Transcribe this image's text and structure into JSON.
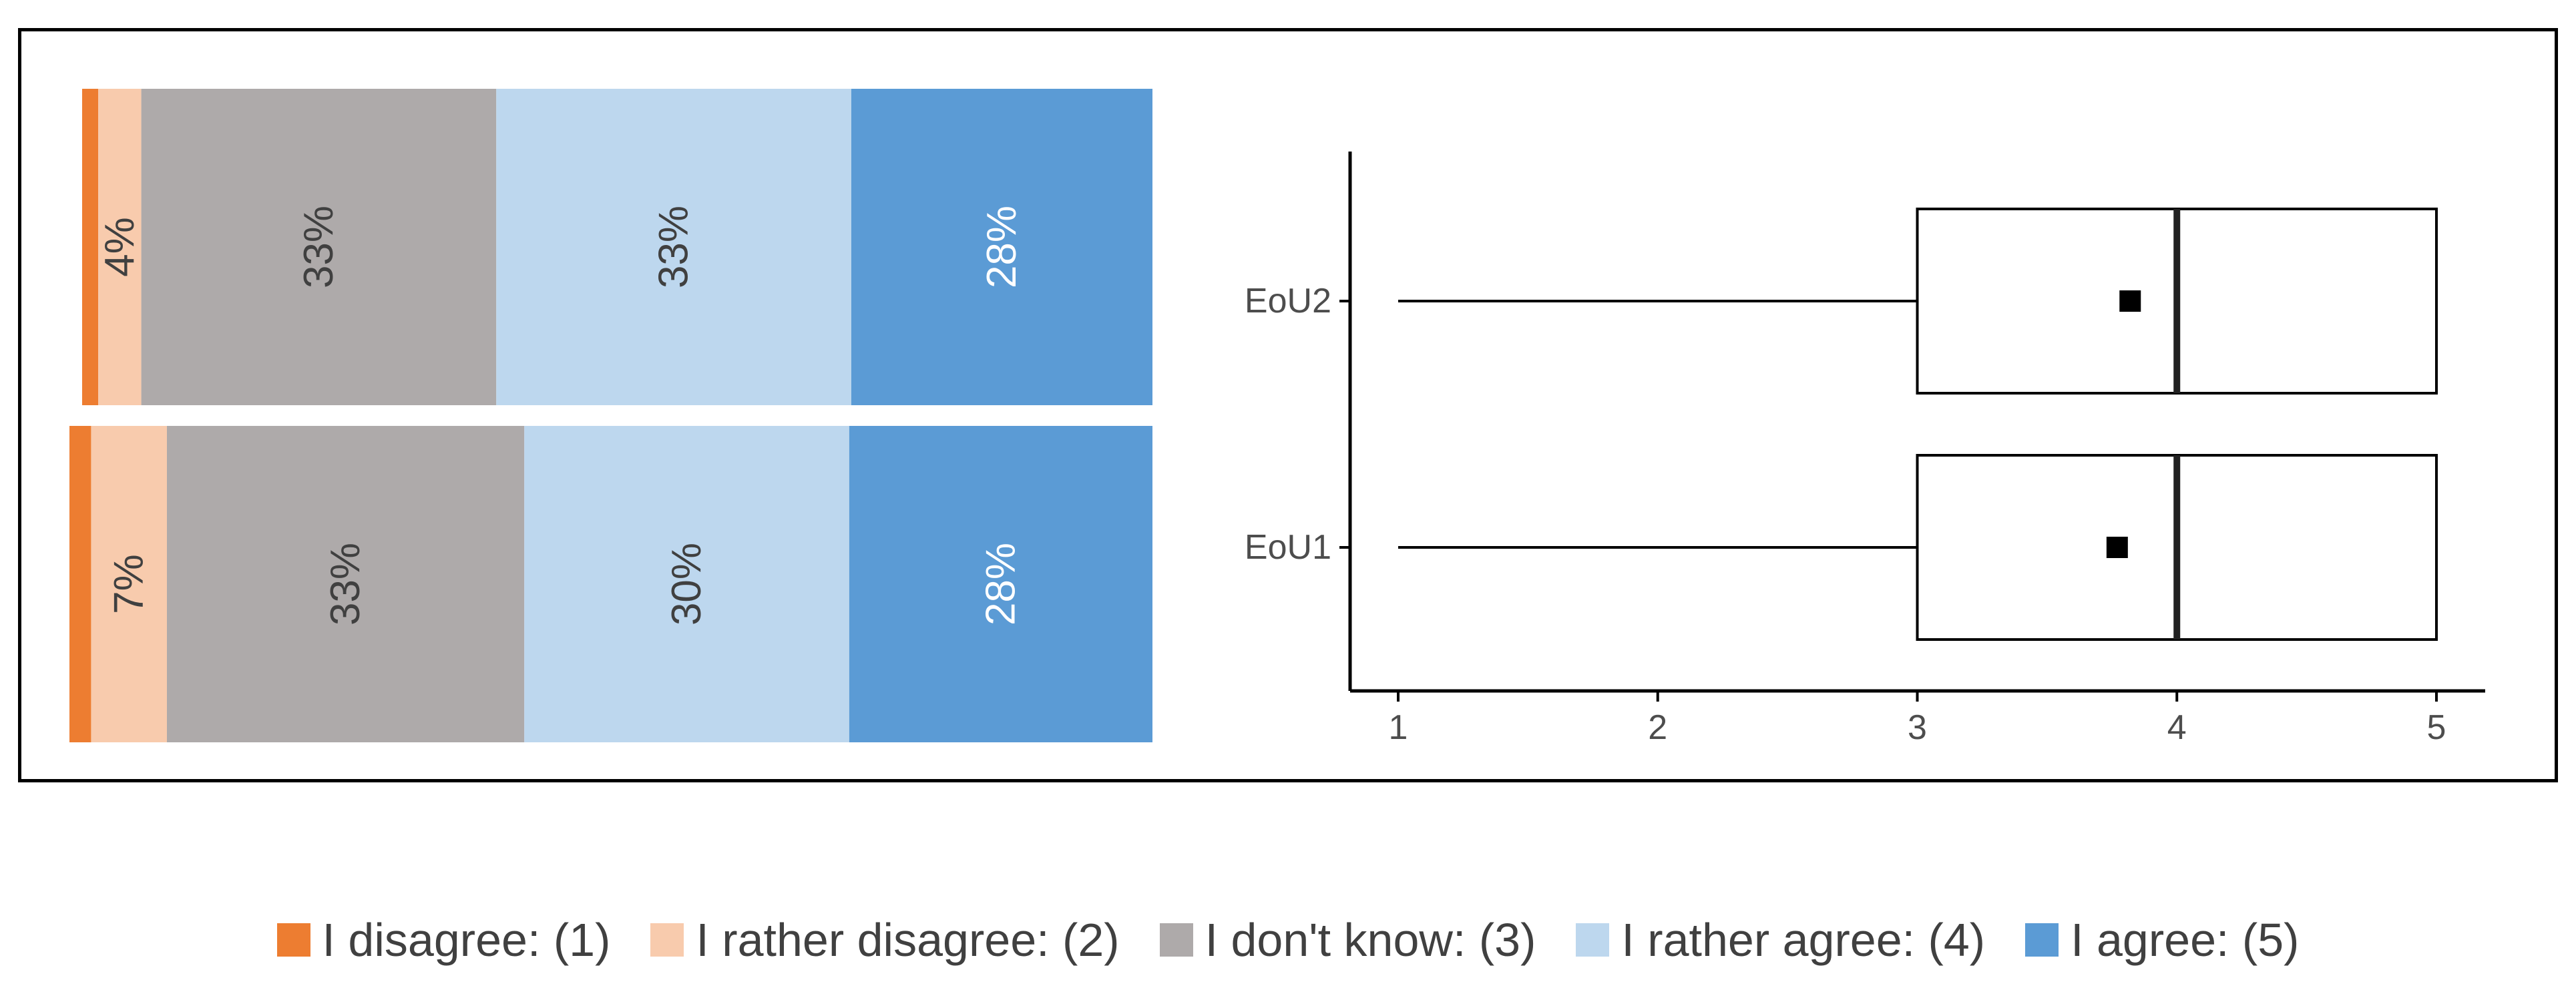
{
  "chart_data": [
    {
      "type": "bar",
      "orientation": "stacked-100",
      "categories": [
        "EoU2",
        "EoU1"
      ],
      "series": [
        {
          "name": "I disagree: (1)",
          "color": "#ED7D31",
          "values": [
            1.5,
            2.0
          ],
          "labels": [
            "",
            ""
          ],
          "label_color": "#404040"
        },
        {
          "name": "I rather disagree: (2)",
          "color": "#F8CBAD",
          "values": [
            4,
            7
          ],
          "labels": [
            "4%",
            "7%"
          ],
          "label_color": "#404040"
        },
        {
          "name": "I don't know: (3)",
          "color": "#AEAAAA",
          "values": [
            33,
            33
          ],
          "labels": [
            "33%",
            "33%"
          ],
          "label_color": "#404040"
        },
        {
          "name": "I rather agree: (4)",
          "color": "#BDD7EE",
          "values": [
            33,
            30
          ],
          "labels": [
            "33%",
            "30%"
          ],
          "label_color": "#404040"
        },
        {
          "name": "I agree: (5)",
          "color": "#5B9BD5",
          "values": [
            28,
            28
          ],
          "labels": [
            "28%",
            "28%"
          ],
          "label_color": "#ffffff"
        }
      ],
      "xlim": [
        0,
        100
      ],
      "grid": false,
      "legend": "bottom"
    },
    {
      "type": "boxplot",
      "categories": [
        "EoU2",
        "EoU1"
      ],
      "boxes": [
        {
          "name": "EoU2",
          "min": 1,
          "q1": 3,
          "median": 4,
          "q3": 5,
          "max": 5,
          "mean": 3.82
        },
        {
          "name": "EoU1",
          "min": 1,
          "q1": 3,
          "median": 4,
          "q3": 5,
          "max": 5,
          "mean": 3.77
        }
      ],
      "xticks": [
        1,
        2,
        3,
        4,
        5
      ],
      "xlim": [
        1,
        5
      ],
      "grid": false
    }
  ],
  "legend": {
    "items": [
      {
        "label": "I disagree: (1)",
        "color": "#ED7D31"
      },
      {
        "label": "I rather disagree: (2)",
        "color": "#F8CBAD"
      },
      {
        "label": "I don't know: (3)",
        "color": "#AEAAAA"
      },
      {
        "label": "I rather agree: (4)",
        "color": "#BDD7EE"
      },
      {
        "label": "I agree: (5)",
        "color": "#5B9BD5"
      }
    ]
  }
}
